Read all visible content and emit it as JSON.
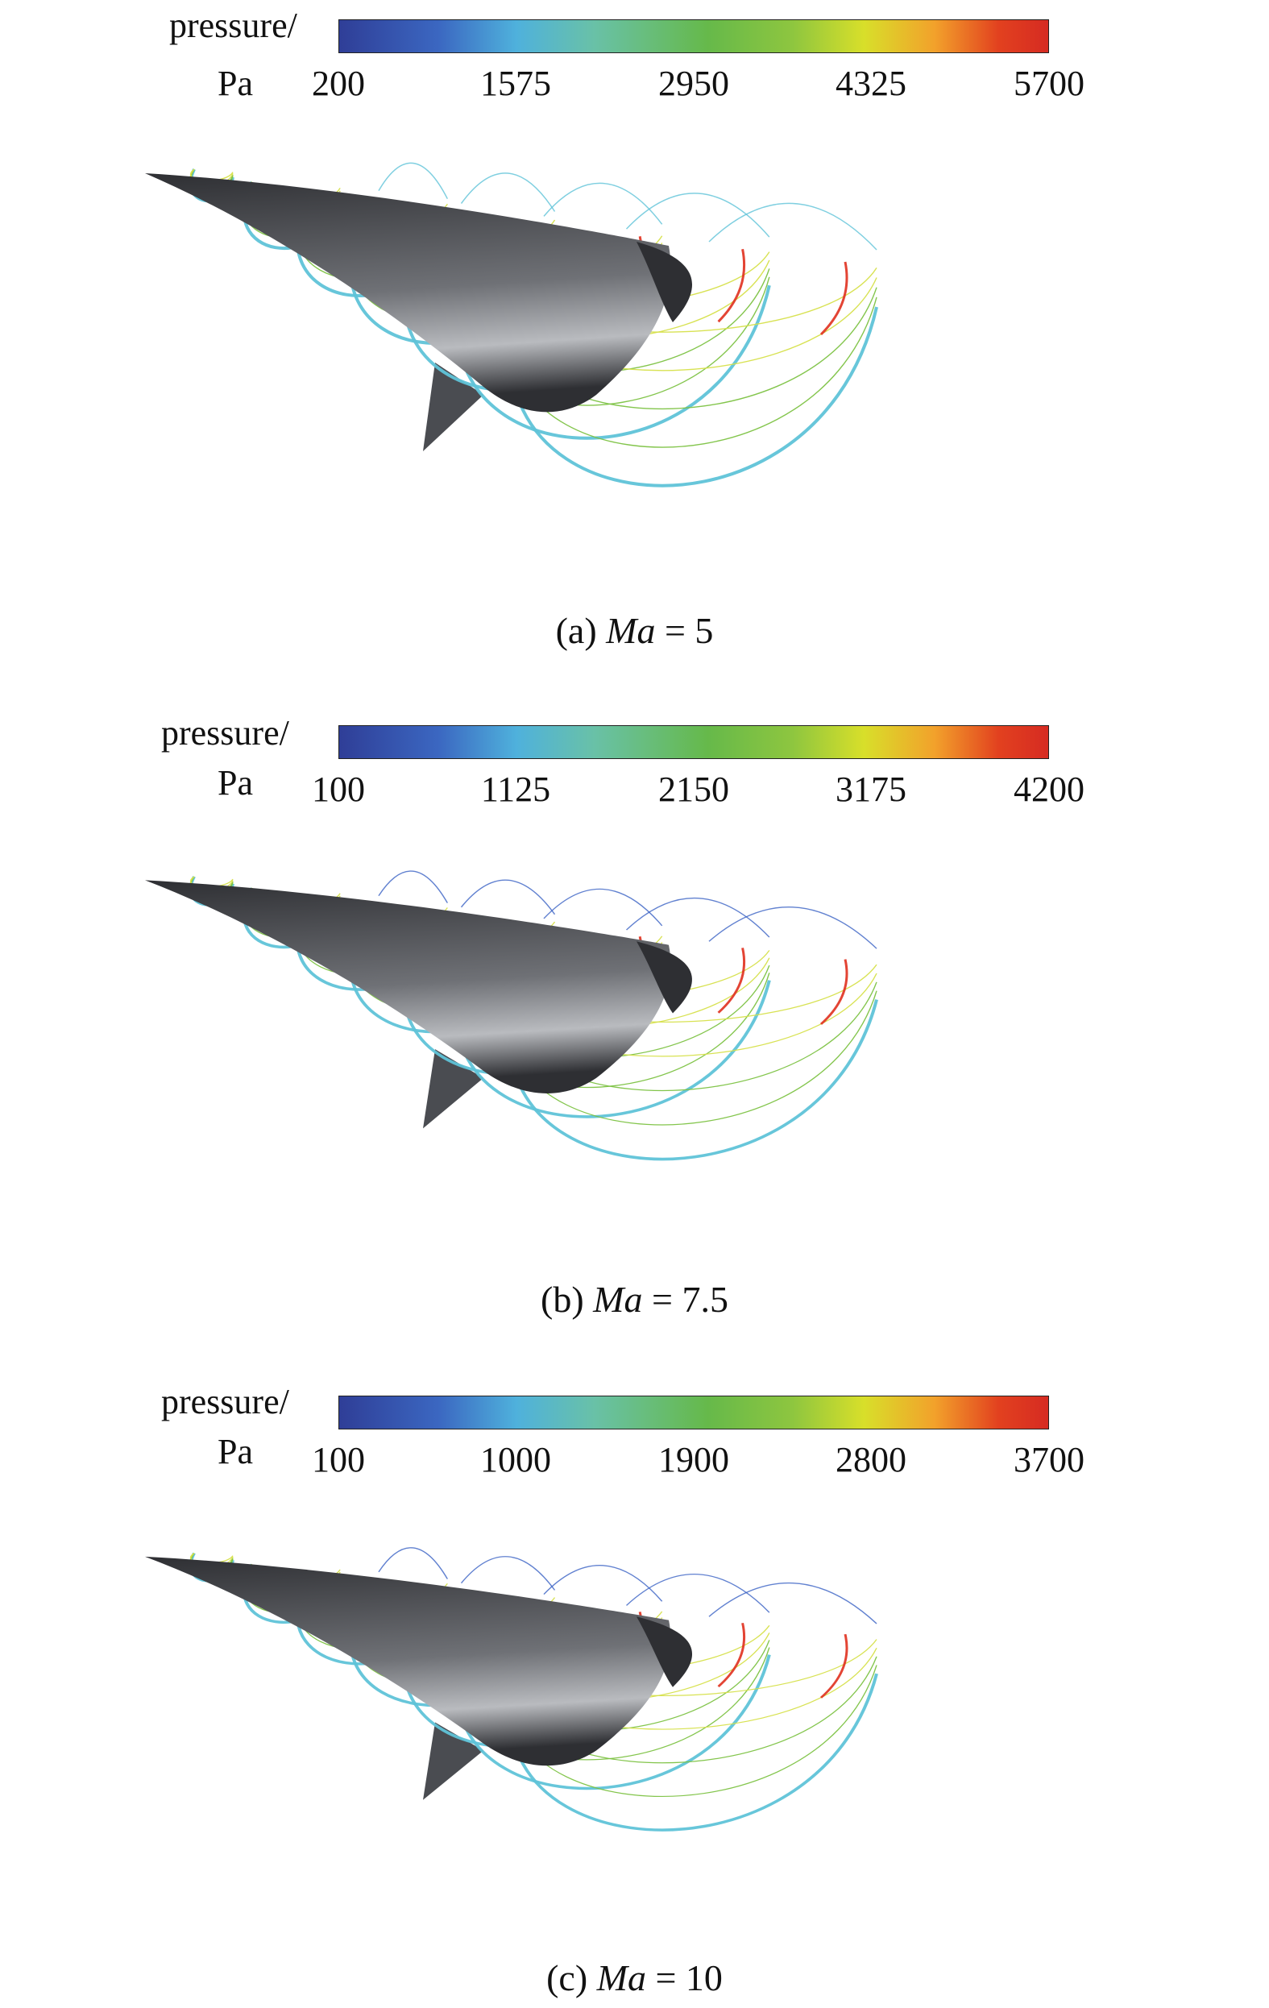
{
  "panels": [
    {
      "colorbar": {
        "label_line1": "pressure/",
        "label_line2": "Pa",
        "ticks": [
          "200",
          "1575",
          "2950",
          "4325",
          "5700"
        ]
      },
      "caption": {
        "prefix": "(a) ",
        "var": "Ma",
        "suffix": " = 5"
      }
    },
    {
      "colorbar": {
        "label_line1": "pressure/",
        "label_line2": "Pa",
        "ticks": [
          "100",
          "1125",
          "2150",
          "3175",
          "4200"
        ]
      },
      "caption": {
        "prefix": "(b) ",
        "var": "Ma",
        "suffix": " = 7.5"
      }
    },
    {
      "colorbar": {
        "label_line1": "pressure/",
        "label_line2": "Pa",
        "ticks": [
          "100",
          "1000",
          "1900",
          "2800",
          "3700"
        ]
      },
      "caption": {
        "prefix": "(c) ",
        "var": "Ma",
        "suffix": " = 10"
      }
    }
  ],
  "colors": {
    "body_dark": "#2e2f33",
    "body_light": "#b9bbbf",
    "contour_green": "#7cc242",
    "contour_yellow": "#d6e04a",
    "contour_cyan": "#5fc3d8",
    "contour_blue": "#3a62c4",
    "contour_red": "#e0301e"
  }
}
